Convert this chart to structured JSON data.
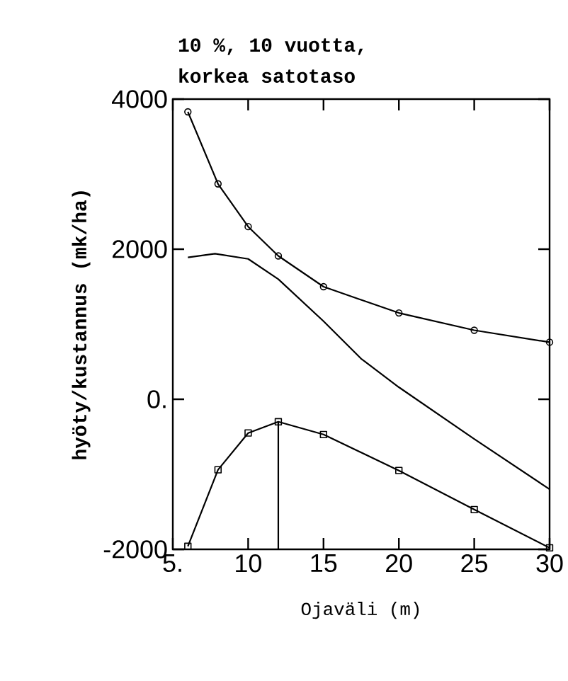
{
  "chart_data": {
    "type": "line",
    "title": "10 %, 10 vuotta,",
    "subtitle": "korkea satotaso",
    "xlabel": "Ojaväli (m)",
    "ylabel": "hyöty/kustannus (mk/ha)",
    "xlim": [
      5,
      30
    ],
    "ylim": [
      -2000,
      4000
    ],
    "xticks": [
      {
        "value": 5,
        "label": "5."
      },
      10,
      15,
      20,
      25,
      30
    ],
    "yticks": [
      {
        "value": -2000,
        "label": "-2000"
      },
      {
        "value": 0,
        "label": "0."
      },
      2000,
      4000
    ],
    "series": [
      {
        "color": "#000000",
        "marker": "circle",
        "x": [
          6,
          8,
          10,
          12,
          15,
          20,
          25,
          30
        ],
        "values": [
          3830,
          2870,
          2300,
          1910,
          1500,
          1150,
          920,
          760
        ]
      },
      {
        "color": "#000000",
        "marker": "none",
        "x": [
          6,
          7.8,
          10,
          12,
          15,
          17.5,
          20,
          25,
          30
        ],
        "values": [
          1890,
          1940,
          1870,
          1600,
          1040,
          540,
          160,
          -530,
          -1200
        ]
      },
      {
        "color": "#000000",
        "marker": "square",
        "x": [
          6,
          8,
          10,
          12,
          15,
          20,
          25,
          30
        ],
        "values": [
          -1960,
          -940,
          -450,
          -300,
          -470,
          -950,
          -1470,
          -1980
        ]
      },
      {
        "color": "#000000",
        "marker": "none",
        "x": [
          12,
          12
        ],
        "values": [
          -2000,
          -300
        ]
      }
    ]
  }
}
